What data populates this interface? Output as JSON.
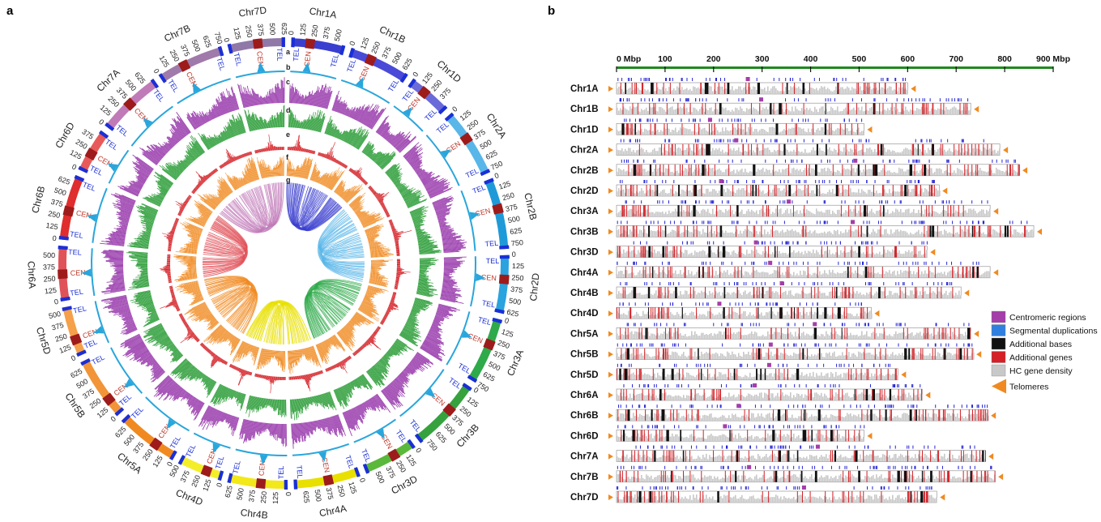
{
  "panel_a": {
    "label": "a",
    "ring_letters": [
      "a",
      "b",
      "c",
      "d",
      "e",
      "f",
      "g"
    ],
    "tel_label": "TEL",
    "cen_label": "CEN",
    "chromosomes": [
      {
        "name": "Chr1A",
        "length": 600,
        "cen": 210,
        "color": "#3b3fcf"
      },
      {
        "name": "Chr1B",
        "length": 690,
        "cen": 245,
        "color": "#4a4ad8"
      },
      {
        "name": "Chr1D",
        "length": 495,
        "cen": 190,
        "color": "#6a6ad8"
      },
      {
        "name": "Chr2A",
        "length": 780,
        "cen": 330,
        "color": "#58b6e8"
      },
      {
        "name": "Chr2B",
        "length": 800,
        "cen": 345,
        "color": "#1f9ad8"
      },
      {
        "name": "Chr2D",
        "length": 650,
        "cen": 270,
        "color": "#2aa3de"
      },
      {
        "name": "Chr3A",
        "length": 750,
        "cen": 300,
        "color": "#2eaa4a"
      },
      {
        "name": "Chr3B",
        "length": 830,
        "cen": 345,
        "color": "#36a23e"
      },
      {
        "name": "Chr3D",
        "length": 615,
        "cen": 250,
        "color": "#5ab83a"
      },
      {
        "name": "Chr4A",
        "length": 745,
        "cen": 355,
        "color": "#e8e000"
      },
      {
        "name": "Chr4B",
        "length": 670,
        "cen": 300,
        "color": "#f2e81a"
      },
      {
        "name": "Chr4D",
        "length": 510,
        "cen": 185,
        "color": "#f4ee2a"
      },
      {
        "name": "Chr5A",
        "length": 710,
        "cen": 250,
        "color": "#f08a20"
      },
      {
        "name": "Chr5B",
        "length": 715,
        "cen": 200,
        "color": "#f29438"
      },
      {
        "name": "Chr5D",
        "length": 565,
        "cen": 185,
        "color": "#f5a04a"
      },
      {
        "name": "Chr6A",
        "length": 615,
        "cen": 300,
        "color": "#e0525a"
      },
      {
        "name": "Chr6B",
        "length": 730,
        "cen": 325,
        "color": "#e02d2d"
      },
      {
        "name": "Chr6D",
        "length": 495,
        "cen": 215,
        "color": "#e85a5a"
      },
      {
        "name": "Chr7A",
        "length": 740,
        "cen": 360,
        "color": "#c07ab8"
      },
      {
        "name": "Chr7B",
        "length": 760,
        "cen": 300,
        "color": "#a07aaa"
      },
      {
        "name": "Chr7D",
        "length": 640,
        "cen": 335,
        "color": "#9078a8"
      }
    ],
    "track_colors": {
      "segdup": "#29a6dc",
      "c": "#9b3fae",
      "d": "#2e9e3a",
      "e": "#d42026",
      "f": "#f08a20"
    }
  },
  "panel_b": {
    "label": "b",
    "scale_ticks": [
      "0 Mbp",
      "100",
      "200",
      "300",
      "400",
      "500",
      "600",
      "700",
      "800",
      "900 Mbp"
    ],
    "scale_max": 900,
    "scale_color": "#1f8a1f",
    "rows": [
      {
        "name": "Chr1A",
        "length": 600
      },
      {
        "name": "Chr1B",
        "length": 730
      },
      {
        "name": "Chr1D",
        "length": 510
      },
      {
        "name": "Chr2A",
        "length": 790
      },
      {
        "name": "Chr2B",
        "length": 830
      },
      {
        "name": "Chr2D",
        "length": 665
      },
      {
        "name": "Chr3A",
        "length": 770
      },
      {
        "name": "Chr3B",
        "length": 860
      },
      {
        "name": "Chr3D",
        "length": 640
      },
      {
        "name": "Chr4A",
        "length": 770
      },
      {
        "name": "Chr4B",
        "length": 710
      },
      {
        "name": "Chr4D",
        "length": 525
      },
      {
        "name": "Chr5A",
        "length": 730
      },
      {
        "name": "Chr5B",
        "length": 735
      },
      {
        "name": "Chr5D",
        "length": 580
      },
      {
        "name": "Chr6A",
        "length": 630
      },
      {
        "name": "Chr6B",
        "length": 765
      },
      {
        "name": "Chr6D",
        "length": 510
      },
      {
        "name": "Chr7A",
        "length": 760
      },
      {
        "name": "Chr7B",
        "length": 780
      },
      {
        "name": "Chr7D",
        "length": 660
      }
    ],
    "legend": [
      {
        "label": "Centromeric regions",
        "color": "#a43ea8",
        "shape": "box"
      },
      {
        "label": "Segmental duplications",
        "color": "#2f7fe0",
        "shape": "box"
      },
      {
        "label": "Additional bases",
        "color": "#111111",
        "shape": "box"
      },
      {
        "label": "Additional genes",
        "color": "#d42026",
        "shape": "box"
      },
      {
        "label": "HC gene density",
        "color": "#c8c8c8",
        "shape": "box"
      },
      {
        "label": "Telomeres",
        "color": "#f08a20",
        "shape": "triangle"
      }
    ],
    "colors": {
      "segdup": "#2525d6",
      "centromere": "#a43ea8",
      "additional_bases": "#111111",
      "additional_genes": "#d42026",
      "density": "#c8c8c8",
      "telomere": "#f08a20"
    }
  }
}
